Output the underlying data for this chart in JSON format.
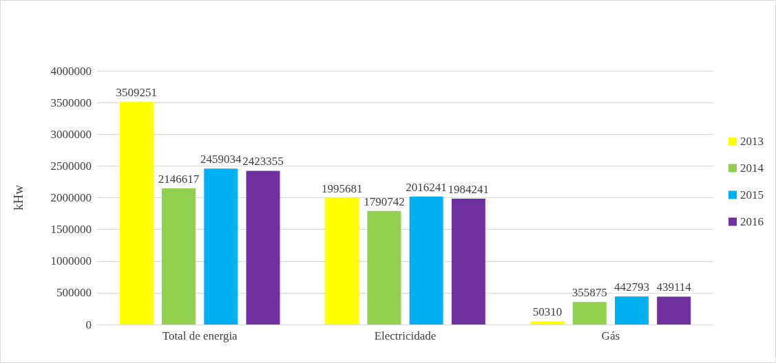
{
  "chart_data": {
    "type": "bar",
    "ylabel": "kHw",
    "categories": [
      "Total de energia",
      "Electricidade",
      "Gás"
    ],
    "series": [
      {
        "name": "2013",
        "color": "#ffff00",
        "values": [
          3509251,
          1995681,
          50310
        ]
      },
      {
        "name": "2014",
        "color": "#92d050",
        "values": [
          2146617,
          1790742,
          355875
        ]
      },
      {
        "name": "2015",
        "color": "#00b0f0",
        "values": [
          2459034,
          2016241,
          442793
        ]
      },
      {
        "name": "2016",
        "color": "#7030a0",
        "values": [
          2423355,
          1984241,
          439114
        ]
      }
    ],
    "ylim": [
      0,
      4000000
    ],
    "yticks": [
      0,
      500000,
      1000000,
      1500000,
      2000000,
      2500000,
      3000000,
      3500000,
      4000000
    ],
    "grid": "y",
    "legend": "right",
    "data_labels": true
  }
}
